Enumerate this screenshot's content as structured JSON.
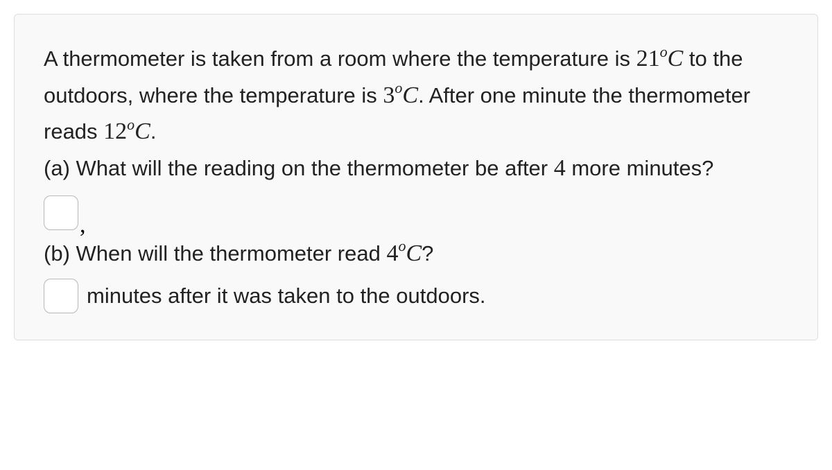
{
  "question": {
    "intro_part1": "A thermometer is taken from a room where the temperature is ",
    "temp1_value": "21",
    "temp1_degree": "o",
    "temp1_unit": "C",
    "intro_part2": " to the outdoors, where the temperature is ",
    "temp2_value": "3",
    "temp2_degree": "o",
    "temp2_unit": "C",
    "intro_part3": ". After one minute the thermometer reads ",
    "temp3_value": "12",
    "temp3_degree": "o",
    "temp3_unit": "C",
    "intro_part4": ".",
    "part_a_label": "(a) What will the reading on the thermometer be after ",
    "part_a_number": "4",
    "part_a_suffix": " more minutes?",
    "part_b_label": "(b) When will the thermometer read ",
    "temp4_value": "4",
    "temp4_degree": "o",
    "temp4_unit": "C",
    "part_b_suffix": "?",
    "answer_b_suffix": "minutes after it was taken to the outdoors."
  },
  "styling": {
    "card_background": "#f9f9f9",
    "card_border": "#dddddd",
    "text_color": "#222222",
    "input_border": "#b8b8b8",
    "body_font_size": 31,
    "math_font_size": 34
  }
}
